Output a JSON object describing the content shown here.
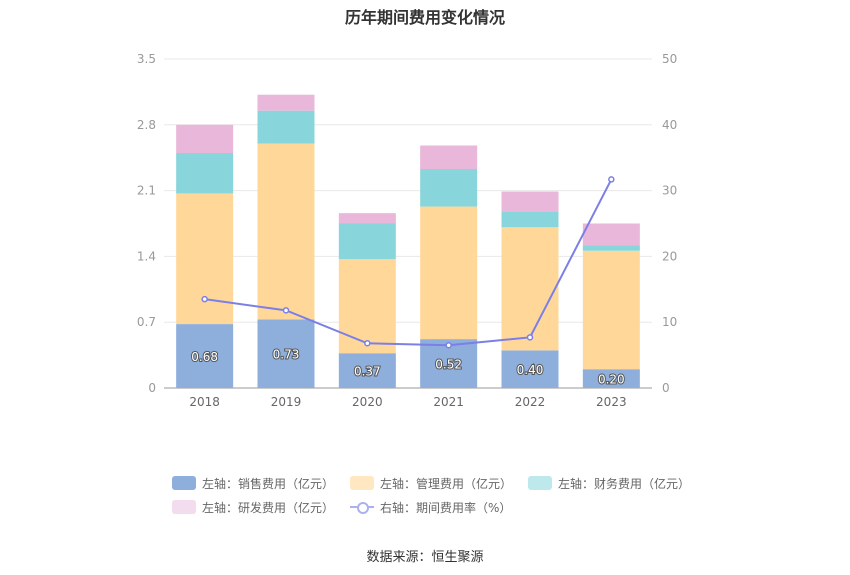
{
  "chart_data": {
    "type": "bar",
    "title": "历年期间费用变化情况",
    "categories": [
      "2018",
      "2019",
      "2020",
      "2021",
      "2022",
      "2023"
    ],
    "y_left": {
      "ticks": [
        "0",
        "0.7",
        "1.4",
        "2.1",
        "2.8",
        "3.5"
      ],
      "ylim": [
        0,
        3.5
      ]
    },
    "y_right": {
      "ticks": [
        "0",
        "10",
        "20",
        "30",
        "40",
        "50"
      ],
      "ylim": [
        0,
        50
      ]
    },
    "grid": true,
    "legend_position": "bottom",
    "series": [
      {
        "name": "左轴：销售费用（亿元）",
        "type": "bar",
        "stack": "total",
        "axis": "left",
        "color": "#8eaedc",
        "values": [
          0.68,
          0.73,
          0.37,
          0.52,
          0.4,
          0.2
        ],
        "data_labels": [
          "0.68",
          "0.73",
          "0.37",
          "0.52",
          "0.40",
          "0.20"
        ]
      },
      {
        "name": "左轴：管理费用（亿元）",
        "type": "bar",
        "stack": "total",
        "axis": "left",
        "color": "#ffd899",
        "values": [
          1.39,
          1.87,
          1.0,
          1.41,
          1.31,
          1.26
        ]
      },
      {
        "name": "左轴：财务费用（亿元）",
        "type": "bar",
        "stack": "total",
        "axis": "left",
        "color": "#88d6db",
        "values": [
          0.43,
          0.35,
          0.38,
          0.4,
          0.17,
          0.06
        ]
      },
      {
        "name": "左轴：研发费用（亿元）",
        "type": "bar",
        "stack": "total",
        "axis": "left",
        "color": "#e8b7d9",
        "values": [
          0.3,
          0.17,
          0.11,
          0.25,
          0.21,
          0.23
        ]
      },
      {
        "name": "右轴：期间费用率（%）",
        "type": "line",
        "axis": "right",
        "color": "#7b7fe6",
        "values": [
          13.5,
          11.8,
          6.8,
          6.5,
          7.7,
          31.7
        ]
      }
    ],
    "legend_colors": [
      "#8eaedc",
      "#ffe7c2",
      "#bde9ec",
      "#f3dcee",
      "#aab0f2"
    ],
    "source": "数据来源：恒生聚源"
  }
}
